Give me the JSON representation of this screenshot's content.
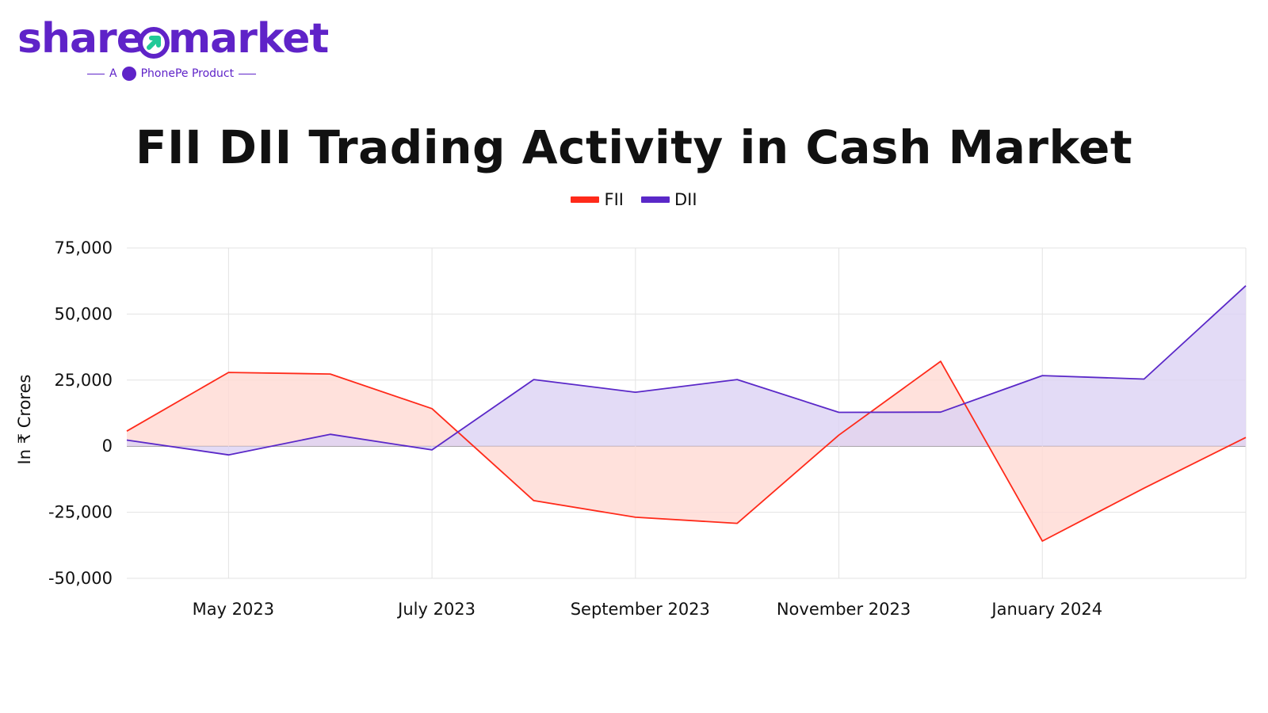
{
  "brand": {
    "name_part1": "share",
    "name_part2": "market",
    "tagline_prefix": "A",
    "tagline_product": "PhonePe Product",
    "color": "#5f23c8"
  },
  "chart_data": {
    "type": "area",
    "title": "FII DII Trading Activity in Cash Market",
    "xlabel": "",
    "ylabel": "In ₹ Crores",
    "ylim": [
      -50000,
      75000
    ],
    "yticks": [
      75000,
      50000,
      25000,
      0,
      -25000,
      -50000
    ],
    "ytick_labels": [
      "75,000",
      "50,000",
      "25,000",
      "0",
      "-25,000",
      "-50,000"
    ],
    "x": [
      "2023-04",
      "2023-05",
      "2023-06",
      "2023-07",
      "2023-08",
      "2023-09",
      "2023-10",
      "2023-11",
      "2023-12",
      "2024-01",
      "2024-02",
      "2024-03"
    ],
    "xtick_labels": [
      "May 2023",
      "July 2023",
      "September 2023",
      "November 2023",
      "January 2024"
    ],
    "xtick_positions": [
      "2023-05",
      "2023-07",
      "2023-09",
      "2023-11",
      "2024-01"
    ],
    "grid": true,
    "legend_position": "top-center",
    "series": [
      {
        "name": "FII",
        "color": "#ff2a1a",
        "fill": "#ffd9d3",
        "values": [
          5700,
          27900,
          27300,
          14200,
          -20600,
          -26900,
          -29200,
          4200,
          32100,
          -35900,
          -15900,
          3300
        ]
      },
      {
        "name": "DII",
        "color": "#5a28c8",
        "fill": "#dcd2f4",
        "values": [
          2300,
          -3300,
          4500,
          -1400,
          25200,
          20400,
          25200,
          12800,
          12900,
          26700,
          25400,
          60700
        ]
      }
    ]
  }
}
